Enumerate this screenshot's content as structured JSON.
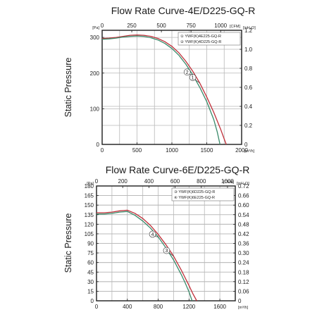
{
  "chart_data": [
    {
      "type": "line",
      "title": "Flow Rate Curve-4E/D225-GQ-R",
      "ylabel": "Static Pressure",
      "y_left_unit": "[Pa]",
      "y_right_unit": "[inH₂O]",
      "x_top_unit": "[CFM]",
      "x_bottom_unit": "[m³/h]",
      "xlim": [
        0,
        2000
      ],
      "ylim": [
        0,
        320
      ],
      "x_bottom_ticks": [
        "0",
        "500",
        "1000",
        "1500",
        "2000"
      ],
      "x_top_ticks": [
        "0",
        "250",
        "500",
        "750",
        "1000"
      ],
      "y_left_ticks": [
        "0",
        "100",
        "200",
        "300"
      ],
      "y_right_ticks": [
        "0",
        "0.2",
        "0.4",
        "0.6",
        "0.8",
        "1.0",
        "1.2"
      ],
      "grid": true,
      "legend_position": "top-right",
      "legend": [
        "① YWF(K)4E225-GQ-R",
        "② YWF(K)4D225-GQ-R"
      ],
      "series": [
        {
          "name": "① YWF(K)4E225-GQ-R",
          "color": "#c0303a",
          "x": [
            0,
            100,
            200,
            300,
            400,
            500,
            600,
            700,
            800,
            900,
            1000,
            1100,
            1200,
            1300,
            1400,
            1500,
            1600,
            1700,
            1750,
            1780
          ],
          "y": [
            297,
            298,
            300,
            303,
            306,
            307,
            306,
            303,
            297,
            288,
            275,
            257,
            233,
            205,
            172,
            133,
            90,
            42,
            15,
            0
          ]
        },
        {
          "name": "② YWF(K)4D225-GQ-R",
          "color": "#3a8a6a",
          "x": [
            0,
            100,
            200,
            300,
            400,
            500,
            600,
            700,
            800,
            900,
            1000,
            1100,
            1200,
            1300,
            1400,
            1500,
            1600,
            1650,
            1690
          ],
          "y": [
            295,
            296,
            298,
            301,
            303,
            304,
            303,
            299,
            293,
            283,
            269,
            250,
            225,
            195,
            160,
            120,
            70,
            35,
            0
          ]
        }
      ],
      "callouts": [
        "1",
        "2"
      ]
    },
    {
      "type": "line",
      "title": "Flow Rate Curve-6E/D225-GQ-R",
      "ylabel": "Static Pressure",
      "y_left_unit": "[Pa]",
      "y_right_unit": "[inH₂O]",
      "x_top_unit": "[CFM]",
      "x_bottom_unit": "[m³/h]",
      "xlim": [
        0,
        1800
      ],
      "ylim": [
        0,
        180
      ],
      "x_bottom_ticks": [
        "0",
        "400",
        "800",
        "1200",
        "1600"
      ],
      "x_top_ticks": [
        "0",
        "200",
        "400",
        "600",
        "800",
        "1000"
      ],
      "y_left_ticks": [
        "0",
        "15",
        "30",
        "45",
        "60",
        "75",
        "90",
        "105",
        "120",
        "135",
        "150",
        "165",
        "180"
      ],
      "y_right_ticks": [
        "0",
        "0.06",
        "0.12",
        "0.18",
        "0.24",
        "0.30",
        "0.36",
        "0.42",
        "0.48",
        "0.54",
        "0.60",
        "0.66",
        "0.72"
      ],
      "grid": true,
      "legend_position": "top-right",
      "legend": [
        "③ YWF(K)6D225-GQ-R",
        "④ YWF(K)6E225-GQ-R"
      ],
      "series": [
        {
          "name": "③ YWF(K)6D225-GQ-R",
          "color": "#c0303a",
          "x": [
            0,
            100,
            200,
            300,
            400,
            500,
            600,
            700,
            800,
            900,
            1000,
            1100,
            1200,
            1250,
            1300
          ],
          "y": [
            138,
            138,
            139,
            141,
            142,
            137,
            129,
            118,
            104,
            88,
            70,
            48,
            24,
            11,
            0
          ]
        },
        {
          "name": "④ YWF(K)6E225-GQ-R",
          "color": "#3a8a6a",
          "x": [
            0,
            100,
            200,
            300,
            400,
            500,
            600,
            700,
            800,
            900,
            1000,
            1100,
            1150,
            1200,
            1240
          ],
          "y": [
            136,
            136,
            137,
            139,
            140,
            134,
            125,
            114,
            100,
            83,
            64,
            41,
            28,
            14,
            0
          ]
        }
      ],
      "callouts": [
        "3",
        "4"
      ]
    }
  ]
}
